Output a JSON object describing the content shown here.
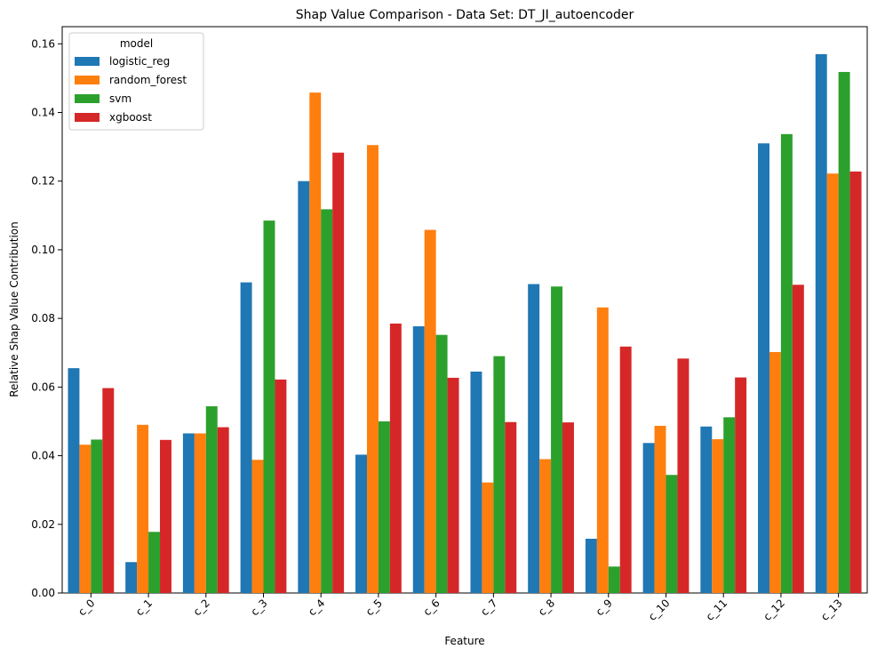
{
  "chart_data": {
    "type": "bar",
    "title": "Shap Value Comparison - Data Set: DT_JI_autoencoder",
    "xlabel": "Feature",
    "ylabel": "Relative Shap Value Contribution",
    "ylim": [
      0,
      0.165
    ],
    "yticks": [
      "0.00",
      "0.02",
      "0.04",
      "0.06",
      "0.08",
      "0.10",
      "0.12",
      "0.14",
      "0.16"
    ],
    "categories": [
      "c_0",
      "c_1",
      "c_2",
      "c_3",
      "c_4",
      "c_5",
      "c_6",
      "c_7",
      "c_8",
      "c_9",
      "c_10",
      "c_11",
      "c_12",
      "c_13"
    ],
    "grid": false,
    "legend": {
      "title": "model",
      "placement": "top-left"
    },
    "series": [
      {
        "name": "logistic_reg",
        "color": "#1f77b4",
        "values": [
          0.0655,
          0.009,
          0.0465,
          0.0905,
          0.12,
          0.0403,
          0.0777,
          0.0645,
          0.09,
          0.0158,
          0.0437,
          0.0485,
          0.131,
          0.157
        ]
      },
      {
        "name": "random_forest",
        "color": "#ff7f0e",
        "values": [
          0.0432,
          0.049,
          0.0465,
          0.0388,
          0.1458,
          0.1305,
          0.1058,
          0.0322,
          0.039,
          0.0832,
          0.0487,
          0.0448,
          0.0702,
          0.1222
        ]
      },
      {
        "name": "svm",
        "color": "#2ca02c",
        "values": [
          0.0447,
          0.0178,
          0.0544,
          0.1085,
          0.1118,
          0.05,
          0.0752,
          0.069,
          0.0893,
          0.0077,
          0.0344,
          0.0512,
          0.1337,
          0.1518
        ]
      },
      {
        "name": "xgboost",
        "color": "#d62728",
        "values": [
          0.0597,
          0.0446,
          0.0483,
          0.0622,
          0.1283,
          0.0785,
          0.0627,
          0.0498,
          0.0497,
          0.0718,
          0.0683,
          0.0628,
          0.0898,
          0.1228
        ]
      }
    ]
  }
}
